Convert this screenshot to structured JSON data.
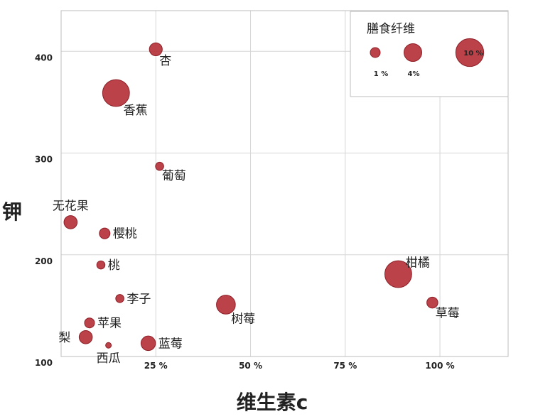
{
  "chart_data": {
    "type": "scatter",
    "variant": "bubble",
    "xlabel": "维生素c",
    "ylabel": "钾",
    "xlim": [
      0,
      118
    ],
    "ylim": [
      100,
      440
    ],
    "x_ticks": [
      {
        "value": 25,
        "label": "25 %"
      },
      {
        "value": 50,
        "label": "50 %"
      },
      {
        "value": 75,
        "label": "75 %"
      },
      {
        "value": 100,
        "label": "100 %"
      }
    ],
    "y_ticks": [
      {
        "value": 100,
        "label": "100"
      },
      {
        "value": 200,
        "label": "200"
      },
      {
        "value": 300,
        "label": "300"
      },
      {
        "value": 400,
        "label": "400"
      }
    ],
    "grid": true,
    "size_legend": {
      "title": "膳食纤维",
      "position": "top-right",
      "entries": [
        {
          "size": 1,
          "label": "1 %"
        },
        {
          "size": 4,
          "label": "4%"
        },
        {
          "size": 10,
          "label": "10 %"
        }
      ]
    },
    "bubble_color": "#b5323a",
    "points": [
      {
        "name": "杏",
        "x": 25,
        "y": 402,
        "size": 1.9,
        "label_pos": "below-right"
      },
      {
        "name": "香蕉",
        "x": 14.5,
        "y": 359,
        "size": 10,
        "label_pos": "below-right"
      },
      {
        "name": "葡萄",
        "x": 26,
        "y": 287,
        "size": 0.6,
        "label_pos": "below-right"
      },
      {
        "name": "无花果",
        "x": 2.5,
        "y": 232,
        "size": 2,
        "label_pos": "above"
      },
      {
        "name": "樱桃",
        "x": 11.5,
        "y": 221,
        "size": 1.2,
        "label_pos": "right"
      },
      {
        "name": "桃",
        "x": 10.5,
        "y": 190,
        "size": 0.6,
        "label_pos": "right"
      },
      {
        "name": "柑橘",
        "x": 89,
        "y": 181,
        "size": 10,
        "label_pos": "above-right"
      },
      {
        "name": "李子",
        "x": 15.5,
        "y": 157,
        "size": 0.6,
        "label_pos": "right"
      },
      {
        "name": "草莓",
        "x": 98,
        "y": 153,
        "size": 1.3,
        "label_pos": "below-right"
      },
      {
        "name": "树莓",
        "x": 43.5,
        "y": 151,
        "size": 4.6,
        "label_pos": "below-right"
      },
      {
        "name": "苹果",
        "x": 7.5,
        "y": 133,
        "size": 1,
        "label_pos": "right"
      },
      {
        "name": "梨",
        "x": 6.5,
        "y": 119,
        "size": 2,
        "label_pos": "left"
      },
      {
        "name": "西瓜",
        "x": 12.5,
        "y": 111,
        "size": 0.2,
        "label_pos": "below"
      },
      {
        "name": "蓝莓",
        "x": 23,
        "y": 113,
        "size": 2.5,
        "label_pos": "right"
      }
    ]
  }
}
